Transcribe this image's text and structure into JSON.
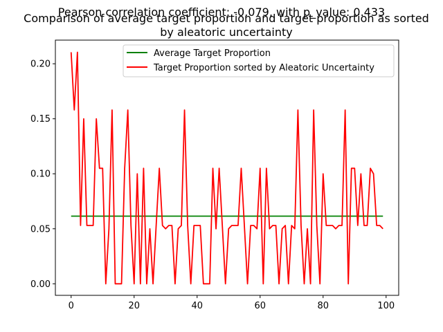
{
  "chart_data": {
    "type": "line",
    "title_overlay": "Pearson correlation coefficient: -0.079, with p_value: 0.433",
    "title_line1": "Comparison of average target proportion and target proportion as sorted",
    "title_line2": "by aleatoric uncertainty",
    "xlim": [
      -5,
      104
    ],
    "ylim": [
      -0.0105,
      0.2215
    ],
    "x_ticks": [
      0,
      20,
      40,
      60,
      80,
      100
    ],
    "y_ticks": [
      0.0,
      0.05,
      0.1,
      0.15,
      0.2
    ],
    "x_tick_labels": [
      "0",
      "20",
      "40",
      "60",
      "80",
      "100"
    ],
    "y_tick_labels": [
      "0.00",
      "0.05",
      "0.10",
      "0.15",
      "0.20"
    ],
    "legend": {
      "placement": "top-right"
    },
    "series": [
      {
        "name": "Average Target Proportion",
        "color": "#008000",
        "x": [
          0,
          99
        ],
        "values": [
          0.0615,
          0.0615
        ]
      },
      {
        "name": "Target Proportion sorted by Aleatoric Uncertainty",
        "color": "#ff0000",
        "x": [
          0,
          1,
          2,
          3,
          4,
          5,
          6,
          7,
          8,
          9,
          10,
          11,
          12,
          13,
          14,
          15,
          16,
          17,
          18,
          19,
          20,
          21,
          22,
          23,
          24,
          25,
          26,
          27,
          28,
          29,
          30,
          31,
          32,
          33,
          34,
          35,
          36,
          37,
          38,
          39,
          40,
          41,
          42,
          43,
          44,
          45,
          46,
          47,
          48,
          49,
          50,
          51,
          52,
          53,
          54,
          55,
          56,
          57,
          58,
          59,
          60,
          61,
          62,
          63,
          64,
          65,
          66,
          67,
          68,
          69,
          70,
          71,
          72,
          73,
          74,
          75,
          76,
          77,
          78,
          79,
          80,
          81,
          82,
          83,
          84,
          85,
          86,
          87,
          88,
          89,
          90,
          91,
          92,
          93,
          94,
          95,
          96,
          97,
          98,
          99
        ],
        "values": [
          0.2105,
          0.158,
          0.2105,
          0.053,
          0.15,
          0.053,
          0.053,
          0.053,
          0.15,
          0.105,
          0.105,
          0.0,
          0.05,
          0.158,
          0.0,
          0.0,
          0.0,
          0.105,
          0.158,
          0.053,
          0.0,
          0.1,
          0.0,
          0.105,
          0.0,
          0.05,
          0.0,
          0.053,
          0.105,
          0.053,
          0.05,
          0.053,
          0.053,
          0.0,
          0.05,
          0.053,
          0.158,
          0.053,
          0.0,
          0.053,
          0.053,
          0.053,
          0.0,
          0.0,
          0.0,
          0.105,
          0.05,
          0.105,
          0.053,
          0.0,
          0.05,
          0.053,
          0.053,
          0.053,
          0.105,
          0.053,
          0.0,
          0.053,
          0.053,
          0.05,
          0.105,
          0.0,
          0.105,
          0.05,
          0.053,
          0.053,
          0.0,
          0.05,
          0.053,
          0.0,
          0.053,
          0.05,
          0.158,
          0.053,
          0.0,
          0.05,
          0.0,
          0.158,
          0.053,
          0.0,
          0.1,
          0.053,
          0.053,
          0.053,
          0.05,
          0.053,
          0.053,
          0.158,
          0.0,
          0.105,
          0.105,
          0.053,
          0.1,
          0.053,
          0.053,
          0.105,
          0.1,
          0.053,
          0.053,
          0.05
        ]
      }
    ]
  }
}
